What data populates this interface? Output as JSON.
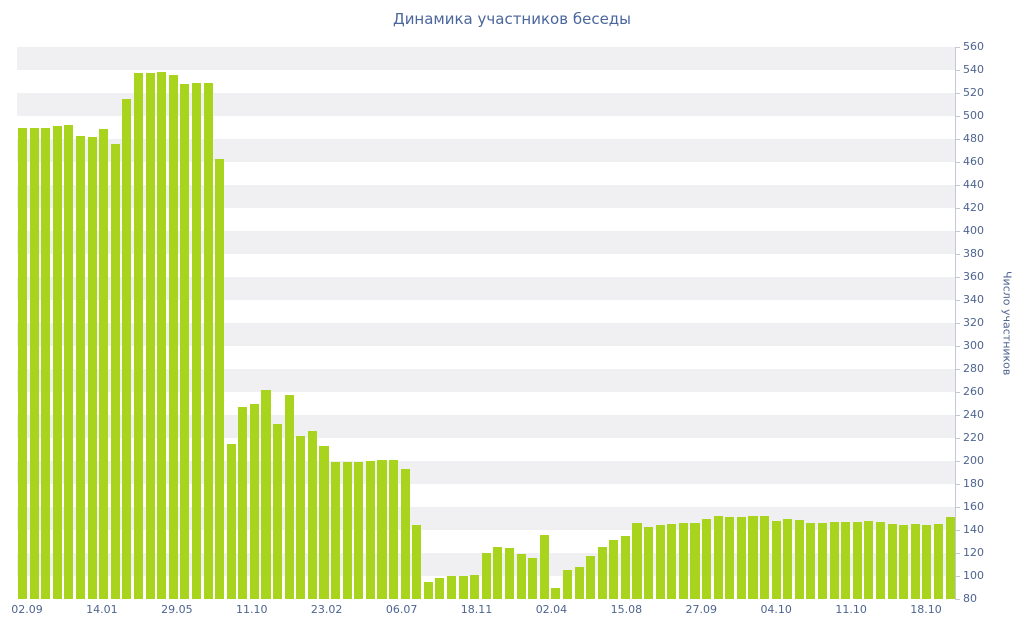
{
  "title": "Динамика участников беседы",
  "y_axis_title": "Число участников",
  "colors": {
    "bar": "#a8d41d",
    "title_text": "#4a669c",
    "label_text": "#4e6490",
    "stripe": "#f0f0f3",
    "axis_line": "#c3c8d6",
    "background": "#ffffff"
  },
  "chart_data": {
    "type": "bar",
    "title": "Динамика участников беседы",
    "xlabel": "",
    "ylabel": "Число участников",
    "ylim": [
      80,
      560
    ],
    "y_tick_step": 20,
    "grid": "horizontal striped bands every 20 units, alternating gray/white",
    "legend": "none",
    "x_tick_labels": [
      "02.09",
      "14.01",
      "29.05",
      "11.10",
      "23.02",
      "06.07",
      "18.11",
      "02.04",
      "15.08",
      "27.09",
      "04.10",
      "11.10",
      "18.10"
    ],
    "values": [
      490,
      490,
      490,
      491,
      492,
      483,
      482,
      489,
      476,
      515,
      537,
      537,
      538,
      536,
      528,
      529,
      529,
      463,
      215,
      247,
      250,
      262,
      232,
      257,
      222,
      226,
      213,
      199,
      199,
      199,
      200,
      201,
      201,
      193,
      144,
      95,
      98,
      100,
      100,
      101,
      120,
      125,
      124,
      119,
      116,
      136,
      90,
      105,
      108,
      117,
      125,
      131,
      135,
      146,
      143,
      144,
      145,
      146,
      146,
      150,
      152,
      151,
      151,
      152,
      152,
      148,
      150,
      149,
      146,
      146,
      147,
      147,
      147,
      148,
      147,
      145,
      144,
      145,
      144,
      145,
      151
    ]
  }
}
